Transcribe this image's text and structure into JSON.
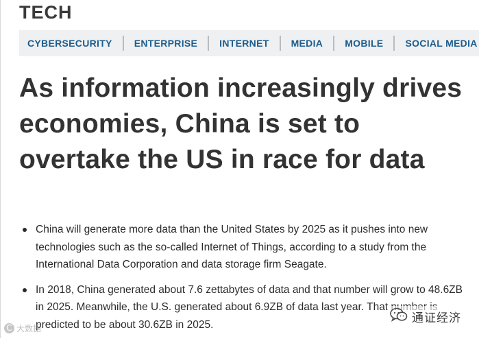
{
  "section": {
    "label": "TECH"
  },
  "nav": {
    "items": [
      {
        "label": "CYBERSECURITY"
      },
      {
        "label": "ENTERPRISE"
      },
      {
        "label": "INTERNET"
      },
      {
        "label": "MEDIA"
      },
      {
        "label": "MOBILE"
      },
      {
        "label": "SOCIAL MEDIA"
      }
    ]
  },
  "article": {
    "headline": "As information increasingly drives economies, China is set to overtake the US in race for data",
    "bullets": [
      "China will generate more data than the United States by 2025 as it pushes into new technologies such as the so-called Internet of Things, according to a study from the International Data Corporation and data storage firm Seagate.",
      "In 2018, China generated about 7.6 zettabytes of data and that number will grow to 48.6ZB in 2025. Meanwhile, the U.S. generated about 6.9ZB of data last year. That number is predicted to be about 30.6ZB in 2025."
    ]
  },
  "watermarks": {
    "left_symbol": "C",
    "left_text": "大数据",
    "right_text": "通证经济",
    "right_icon": "wechat-icon"
  },
  "colors": {
    "nav_text": "#1d5c8c",
    "nav_bg": "#eef0f2",
    "headline": "#333333"
  }
}
